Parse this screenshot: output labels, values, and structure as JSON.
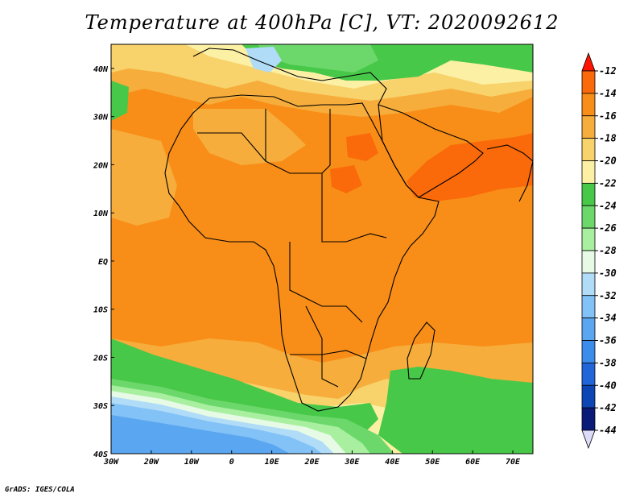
{
  "title": "Temperature at 400hPa [C], VT: 2020092612",
  "footer": "GrADS: IGES/COLA",
  "map": {
    "lon_range": [
      -30,
      75
    ],
    "lat_range": [
      -40,
      45
    ],
    "x_ticks": [
      {
        "lon": -30,
        "label": "30W"
      },
      {
        "lon": -20,
        "label": "20W"
      },
      {
        "lon": -10,
        "label": "10W"
      },
      {
        "lon": 0,
        "label": "0"
      },
      {
        "lon": 10,
        "label": "10E"
      },
      {
        "lon": 20,
        "label": "20E"
      },
      {
        "lon": 30,
        "label": "30E"
      },
      {
        "lon": 40,
        "label": "40E"
      },
      {
        "lon": 50,
        "label": "50E"
      },
      {
        "lon": 60,
        "label": "60E"
      },
      {
        "lon": 70,
        "label": "70E"
      }
    ],
    "y_ticks": [
      {
        "lat": 40,
        "label": "40N"
      },
      {
        "lat": 30,
        "label": "30N"
      },
      {
        "lat": 20,
        "label": "20N"
      },
      {
        "lat": 10,
        "label": "10N"
      },
      {
        "lat": 0,
        "label": "EQ"
      },
      {
        "lat": -10,
        "label": "10S"
      },
      {
        "lat": -20,
        "label": "20S"
      },
      {
        "lat": -30,
        "label": "30S"
      },
      {
        "lat": -40,
        "label": "40S"
      }
    ]
  },
  "colorbar": {
    "levels": [
      "-12",
      "-14",
      "-16",
      "-18",
      "-20",
      "-22",
      "-24",
      "-26",
      "-28",
      "-30",
      "-32",
      "-34",
      "-36",
      "-38",
      "-40",
      "-42",
      "-44"
    ],
    "colors": [
      "#ff3c14",
      "#fa6a0a",
      "#f88e18",
      "#f6ad3c",
      "#f8d26a",
      "#fcf0a4",
      "#48c848",
      "#6cd86c",
      "#a8f0a0",
      "#e6fae6",
      "#b0dcf8",
      "#82c2f6",
      "#5aa6f0",
      "#3c8cec",
      "#2066d8",
      "#0d46b4",
      "#0a1a78"
    ],
    "top_arrow_color": "#ff1400",
    "bottom_arrow_color": "#dcdcfa"
  },
  "field_colors": {
    "t12": "#ff3c14",
    "t14": "#fa6a0a",
    "t16": "#f88e18",
    "t18": "#f6ad3c",
    "t20": "#f8d26a",
    "t22": "#fcf0a4",
    "t24": "#48c848",
    "t26": "#6cd86c",
    "t28": "#a8f0a0",
    "t30": "#e6fae6",
    "t32": "#b0dcf8",
    "t34": "#82c2f6",
    "t36": "#5aa6f0"
  }
}
